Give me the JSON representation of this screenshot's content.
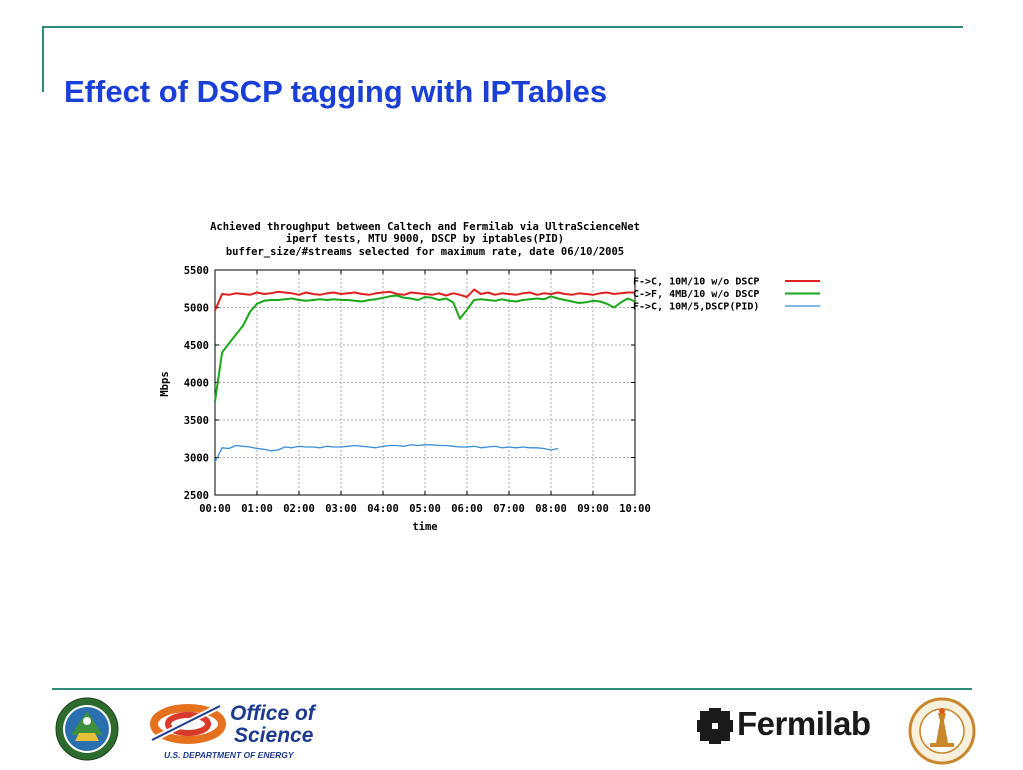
{
  "slide": {
    "title": "Effect of DSCP tagging with IPTables"
  },
  "chart_data": {
    "type": "line",
    "title": "Achieved throughput between Caltech and Fermilab via UltraScienceNet",
    "subtitle": "iperf tests,  MTU 9000, DSCP by iptables(PID)",
    "subtitle2": "buffer_size/#streams selected for maximum rate, date 06/10/2005",
    "xlabel": "time",
    "ylabel": "Mbps",
    "xlim": [
      0,
      10
    ],
    "ylim": [
      2500,
      5500
    ],
    "xticks": [
      0,
      1,
      2,
      3,
      4,
      5,
      6,
      7,
      8,
      9,
      10
    ],
    "xtick_labels": [
      "00:00",
      "01:00",
      "02:00",
      "03:00",
      "04:00",
      "05:00",
      "06:00",
      "07:00",
      "08:00",
      "09:00",
      "10:00"
    ],
    "yticks": [
      2500,
      3000,
      3500,
      4000,
      4500,
      5000,
      5500
    ],
    "ytick_labels": [
      "2500",
      "3000",
      "3500",
      "4000",
      "4500",
      "5000",
      "5500"
    ],
    "grid": true,
    "legend_position": "top-right",
    "series": [
      {
        "name": "F->C, 10M/10 w/o DSCP",
        "color": "#e02020",
        "x": [
          0,
          0.17,
          0.33,
          0.5,
          0.67,
          0.83,
          1.0,
          1.17,
          1.33,
          1.5,
          1.67,
          1.83,
          2.0,
          2.17,
          2.33,
          2.5,
          2.67,
          2.83,
          3.0,
          3.17,
          3.33,
          3.5,
          3.67,
          3.83,
          4.0,
          4.17,
          4.33,
          4.5,
          4.67,
          4.83,
          5.0,
          5.17,
          5.33,
          5.5,
          5.67,
          5.83,
          6.0,
          6.17,
          6.33,
          6.5,
          6.67,
          6.83,
          7.0,
          7.17,
          7.33,
          7.5,
          7.67,
          7.83,
          8.0,
          8.17,
          8.33,
          8.5,
          8.67,
          8.83,
          9.0,
          9.17,
          9.33,
          9.5,
          9.67,
          9.83,
          10.0
        ],
        "y": [
          4960,
          5180,
          5170,
          5190,
          5180,
          5170,
          5200,
          5180,
          5190,
          5210,
          5200,
          5190,
          5170,
          5200,
          5180,
          5170,
          5190,
          5200,
          5180,
          5190,
          5200,
          5180,
          5170,
          5190,
          5200,
          5210,
          5180,
          5170,
          5200,
          5190,
          5180,
          5170,
          5190,
          5160,
          5190,
          5170,
          5140,
          5240,
          5180,
          5200,
          5170,
          5190,
          5180,
          5170,
          5190,
          5200,
          5170,
          5190,
          5180,
          5200,
          5180,
          5170,
          5190,
          5180,
          5170,
          5190,
          5200,
          5180,
          5190,
          5200,
          5200
        ]
      },
      {
        "name": "C->F, 4MB/10 w/o DSCP",
        "color": "#1aa81a",
        "x": [
          0,
          0.17,
          0.33,
          0.5,
          0.67,
          0.83,
          1.0,
          1.17,
          1.33,
          1.5,
          1.67,
          1.83,
          2.0,
          2.17,
          2.33,
          2.5,
          2.67,
          2.83,
          3.0,
          3.17,
          3.33,
          3.5,
          3.67,
          3.83,
          4.0,
          4.17,
          4.33,
          4.5,
          4.67,
          4.83,
          5.0,
          5.17,
          5.33,
          5.5,
          5.67,
          5.83,
          6.0,
          6.17,
          6.33,
          6.5,
          6.67,
          6.83,
          7.0,
          7.17,
          7.33,
          7.5,
          7.67,
          7.83,
          8.0,
          8.17,
          8.33,
          8.5,
          8.67,
          8.83,
          9.0,
          9.17,
          9.33,
          9.5,
          9.67,
          9.83,
          10.0
        ],
        "y": [
          3750,
          4400,
          4520,
          4640,
          4760,
          4940,
          5050,
          5090,
          5100,
          5100,
          5110,
          5120,
          5100,
          5090,
          5100,
          5110,
          5100,
          5110,
          5100,
          5100,
          5090,
          5080,
          5100,
          5110,
          5130,
          5150,
          5160,
          5130,
          5120,
          5100,
          5140,
          5130,
          5100,
          5120,
          5070,
          4850,
          4970,
          5100,
          5110,
          5100,
          5090,
          5110,
          5090,
          5080,
          5100,
          5110,
          5120,
          5110,
          5150,
          5120,
          5100,
          5080,
          5060,
          5070,
          5090,
          5080,
          5050,
          5000,
          5070,
          5120,
          5080
        ]
      },
      {
        "name": "F->C, 10M/5,DSCP(PID)",
        "color": "#3a8fd8",
        "x": [
          0,
          0.17,
          0.33,
          0.5,
          0.67,
          0.83,
          1.0,
          1.17,
          1.33,
          1.5,
          1.67,
          1.83,
          2.0,
          2.17,
          2.33,
          2.5,
          2.67,
          2.83,
          3.0,
          3.17,
          3.33,
          3.5,
          3.67,
          3.83,
          4.0,
          4.17,
          4.33,
          4.5,
          4.67,
          4.83,
          5.0,
          5.17,
          5.33,
          5.5,
          5.67,
          5.83,
          6.0,
          6.17,
          6.33,
          6.5,
          6.67,
          6.83,
          7.0,
          7.17,
          7.33,
          7.5,
          7.67,
          7.83,
          8.0,
          8.17
        ],
        "y": [
          2940,
          3130,
          3120,
          3160,
          3150,
          3140,
          3120,
          3110,
          3090,
          3100,
          3140,
          3130,
          3150,
          3140,
          3140,
          3130,
          3150,
          3140,
          3140,
          3150,
          3160,
          3150,
          3140,
          3130,
          3150,
          3160,
          3160,
          3150,
          3170,
          3160,
          3170,
          3170,
          3160,
          3160,
          3150,
          3140,
          3140,
          3150,
          3130,
          3140,
          3150,
          3130,
          3140,
          3130,
          3140,
          3130,
          3130,
          3120,
          3100,
          3120
        ]
      }
    ]
  },
  "logos": {
    "doe_seal": "doe-seal-icon",
    "office_of_science_line1": "Office of",
    "office_of_science_line2": "Science",
    "office_of_science_line3": "U.S. DEPARTMENT OF ENERGY",
    "fermilab_text": "Fermilab",
    "fermilab_mark": "fermilab-mark-icon",
    "caltech_seal": "caltech-seal-icon"
  }
}
